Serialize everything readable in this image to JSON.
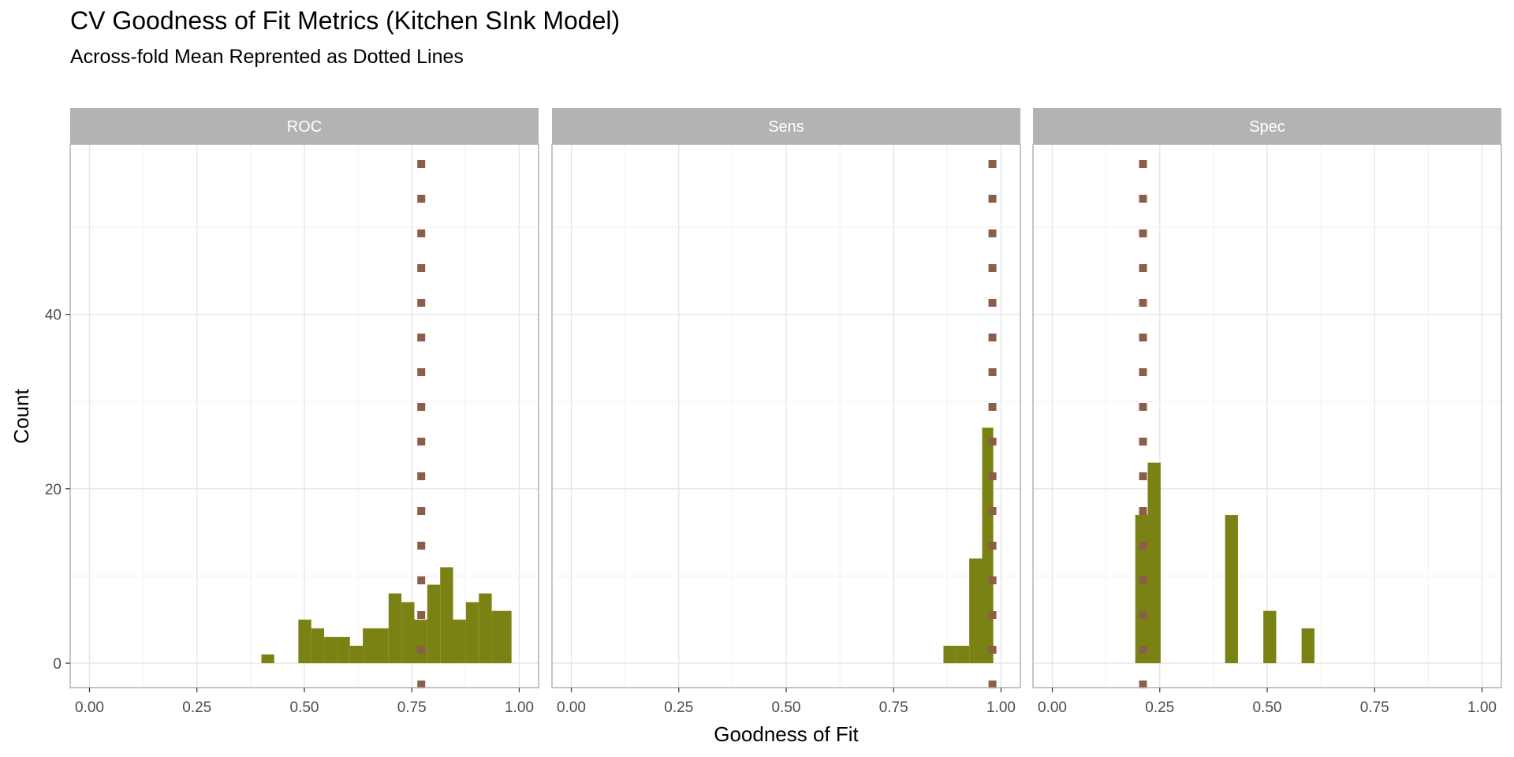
{
  "chart_data": {
    "type": "histogram",
    "title": "CV Goodness of Fit Metrics (Kitchen SInk Model)",
    "subtitle": "Across-fold Mean Reprented as Dotted Lines",
    "xlabel": "Goodness of Fit",
    "ylabel": "Count",
    "xlim": [
      -0.045,
      1.045
    ],
    "ylim": [
      -2.8,
      59.5
    ],
    "x_ticks": [
      0,
      0.25,
      0.5,
      0.75,
      1
    ],
    "x_tick_labels": [
      "0.00",
      "0.25",
      "0.50",
      "0.75",
      "1.00"
    ],
    "y_ticks": [
      0,
      20,
      40
    ],
    "y_tick_labels": [
      "0",
      "20",
      "40"
    ],
    "grid": true,
    "bar_color": "#7A8214",
    "mean_line_color": "#8B5E4A",
    "strip_color": "#B3B3B3",
    "panels": [
      {
        "name": "ROC",
        "mean": 0.772,
        "bins": [
          {
            "x0": 0.4,
            "x1": 0.43,
            "count": 1
          },
          {
            "x0": 0.486,
            "x1": 0.516,
            "count": 5
          },
          {
            "x0": 0.516,
            "x1": 0.546,
            "count": 4
          },
          {
            "x0": 0.546,
            "x1": 0.576,
            "count": 3
          },
          {
            "x0": 0.576,
            "x1": 0.606,
            "count": 3
          },
          {
            "x0": 0.606,
            "x1": 0.636,
            "count": 2
          },
          {
            "x0": 0.636,
            "x1": 0.666,
            "count": 4
          },
          {
            "x0": 0.666,
            "x1": 0.696,
            "count": 4
          },
          {
            "x0": 0.696,
            "x1": 0.726,
            "count": 8
          },
          {
            "x0": 0.726,
            "x1": 0.756,
            "count": 7
          },
          {
            "x0": 0.756,
            "x1": 0.786,
            "count": 5
          },
          {
            "x0": 0.786,
            "x1": 0.816,
            "count": 9
          },
          {
            "x0": 0.816,
            "x1": 0.846,
            "count": 11
          },
          {
            "x0": 0.846,
            "x1": 0.876,
            "count": 5
          },
          {
            "x0": 0.876,
            "x1": 0.906,
            "count": 7
          },
          {
            "x0": 0.906,
            "x1": 0.936,
            "count": 8
          },
          {
            "x0": 0.936,
            "x1": 0.982,
            "count": 6
          }
        ]
      },
      {
        "name": "Sens",
        "mean": 0.98,
        "bins": [
          {
            "x0": 0.866,
            "x1": 0.896,
            "count": 2
          },
          {
            "x0": 0.896,
            "x1": 0.926,
            "count": 2
          },
          {
            "x0": 0.926,
            "x1": 0.956,
            "count": 12
          },
          {
            "x0": 0.956,
            "x1": 0.982,
            "count": 27
          }
        ]
      },
      {
        "name": "Spec",
        "mean": 0.211,
        "bins": [
          {
            "x0": 0.193,
            "x1": 0.222,
            "count": 17
          },
          {
            "x0": 0.222,
            "x1": 0.252,
            "count": 23
          },
          {
            "x0": 0.402,
            "x1": 0.432,
            "count": 17
          },
          {
            "x0": 0.491,
            "x1": 0.521,
            "count": 6
          },
          {
            "x0": 0.58,
            "x1": 0.61,
            "count": 4
          }
        ]
      }
    ]
  }
}
